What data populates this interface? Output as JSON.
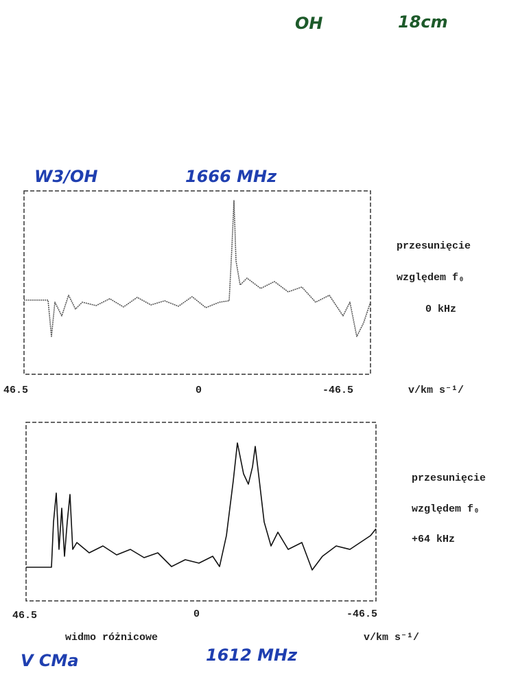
{
  "header": {
    "molecule": "OH",
    "band": "18cm"
  },
  "panels": [
    {
      "source": "W3/OH",
      "frequency": "1666 MHz",
      "axis_labels": [
        "46.5",
        "0",
        "-46.5"
      ],
      "axis_unit": "v/km s⁻¹/",
      "shift": [
        "przesunięcie",
        "względem f₀",
        "0 kHz"
      ]
    },
    {
      "source": "V CMa",
      "frequency": "1612 MHz",
      "axis_labels": [
        "46.5",
        "0",
        "-46.5"
      ],
      "axis_unit": "v/km s⁻¹/",
      "shift": [
        "przesunięcie",
        "względem f₀",
        "+64 kHz"
      ],
      "caption": "widmo różnicowe"
    }
  ]
}
